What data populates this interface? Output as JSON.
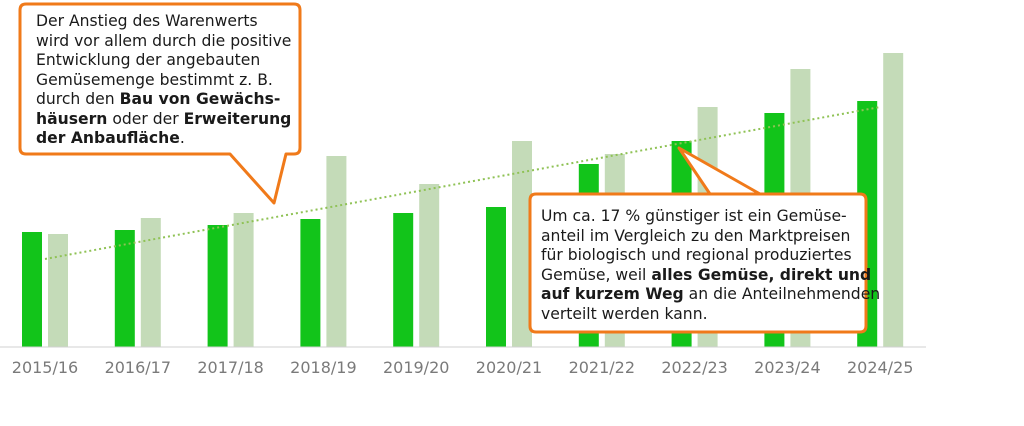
{
  "chart_data": {
    "type": "bar",
    "categories": [
      "2015/16",
      "2016/17",
      "2017/18",
      "2018/19",
      "2019/20",
      "2020/21",
      "2021/22",
      "2022/23",
      "2023/24",
      "2024/25"
    ],
    "series": [
      {
        "values": [
          115,
          117,
          122,
          128,
          134,
          140,
          183,
          206,
          234,
          246
        ]
      },
      {
        "values": [
          113,
          129,
          134,
          191,
          163,
          206,
          193,
          240,
          278,
          294
        ]
      }
    ],
    "trendline": {
      "start": 88,
      "end": 240,
      "style": "dotted"
    },
    "colors": {
      "series1": "#12c41a",
      "series2": "#c4dbb8",
      "trend": "#8fc255",
      "callout_border": "#f07a1a",
      "axis": "#d0d0d0",
      "tick_text": "#7a7a7a"
    },
    "title": "",
    "xlabel": "",
    "ylabel": "",
    "ylim": [
      0,
      320
    ],
    "grid": false,
    "legend": "none"
  },
  "callouts": [
    {
      "lines": [
        [
          {
            "t": "Der Anstieg des Warenwerts",
            "b": false
          }
        ],
        [
          {
            "t": "wird vor allem durch die positive",
            "b": false
          }
        ],
        [
          {
            "t": "Entwicklung der angebauten",
            "b": false
          }
        ],
        [
          {
            "t": "Gemüsemenge bestimmt z. B.",
            "b": false
          }
        ],
        [
          {
            "t": "durch den ",
            "b": false
          },
          {
            "t": "Bau von Gewächs-",
            "b": true
          }
        ],
        [
          {
            "t": "häusern",
            "b": true
          },
          {
            "t": " oder der ",
            "b": false
          },
          {
            "t": "Erweiterung",
            "b": true
          }
        ],
        [
          {
            "t": "der Anbaufläche",
            "b": true
          },
          {
            "t": ".",
            "b": false
          }
        ]
      ]
    },
    {
      "lines": [
        [
          {
            "t": "Um ca. 17 % günstiger ist ein Gemüse-",
            "b": false
          }
        ],
        [
          {
            "t": "anteil im Vergleich zu den Marktpreisen",
            "b": false
          }
        ],
        [
          {
            "t": "für biologisch und regional produziertes",
            "b": false
          }
        ],
        [
          {
            "t": "Gemüse, weil ",
            "b": false
          },
          {
            "t": "alles Gemüse, direkt und",
            "b": true
          }
        ],
        [
          {
            "t": "auf kurzem Weg",
            "b": true
          },
          {
            "t": " an die Anteilnehmenden",
            "b": false
          }
        ],
        [
          {
            "t": "verteilt werden kann.",
            "b": false
          }
        ]
      ]
    }
  ]
}
